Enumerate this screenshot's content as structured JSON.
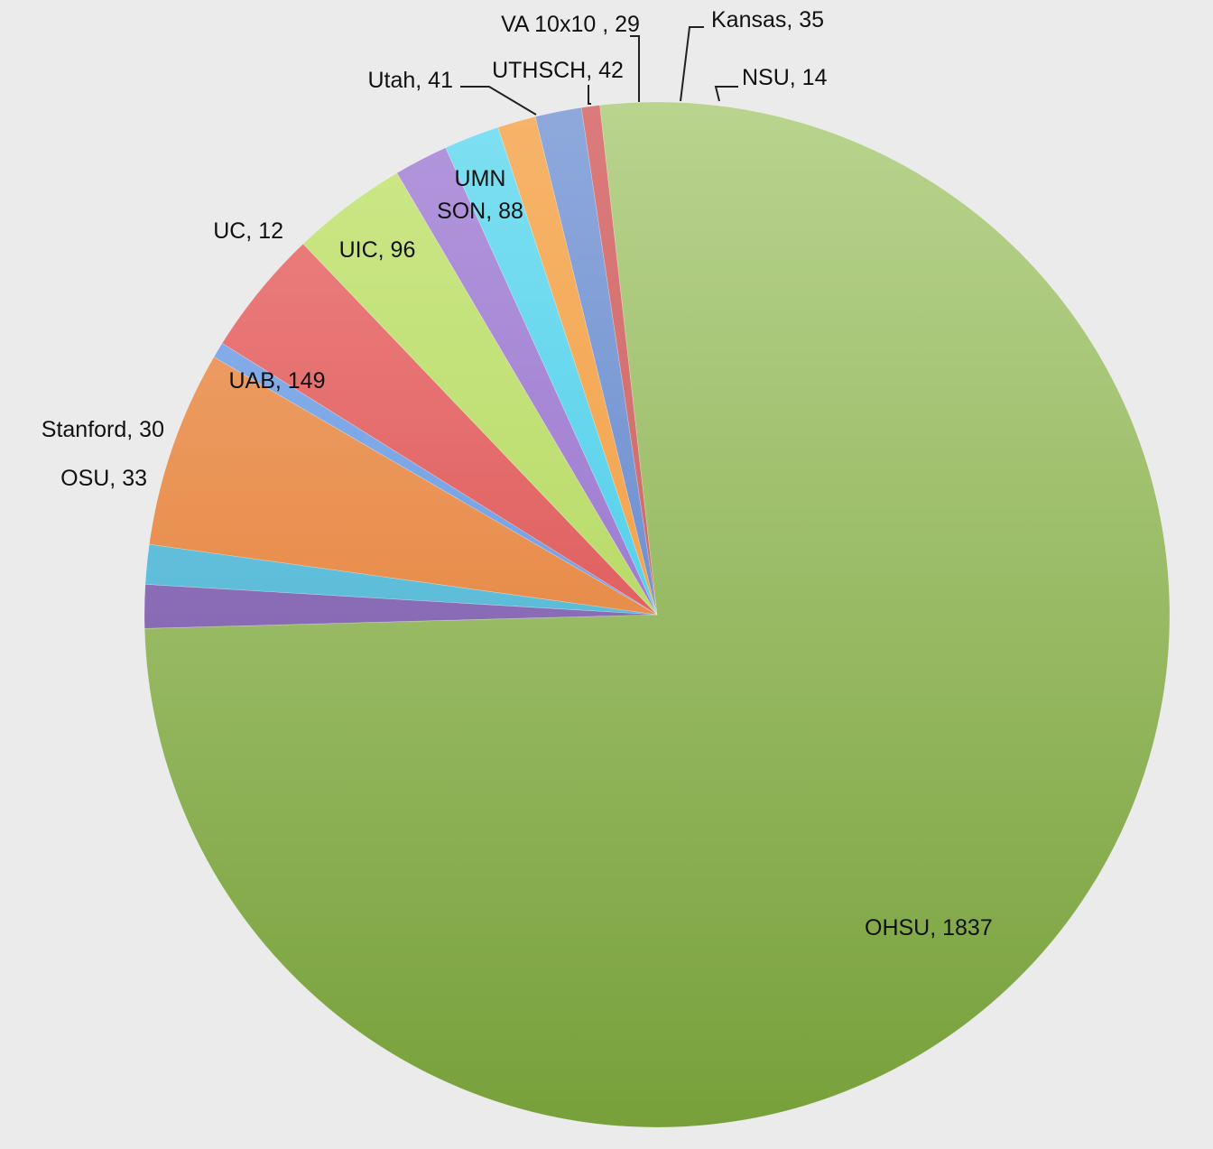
{
  "chart_data": {
    "type": "pie",
    "title": "",
    "slices": [
      {
        "label": "NSU, 14",
        "name": "NSU",
        "value": 14,
        "color": "#dc7b7b",
        "color_dark": "#c05a5a"
      },
      {
        "label": "OHSU, 1837",
        "name": "OHSU",
        "value": 1837,
        "color": "#b9d48e",
        "color_dark": "#77a03a"
      },
      {
        "label": "OSU, 33",
        "name": "OSU",
        "value": 33,
        "color": "#a88ccf",
        "color_dark": "#6a4a9c"
      },
      {
        "label": "Stanford, 30",
        "name": "Stanford",
        "value": 30,
        "color": "#7fd0e8",
        "color_dark": "#3aa8c8"
      },
      {
        "label": "UAB, 149",
        "name": "UAB",
        "value": 149,
        "color": "#f0a877",
        "color_dark": "#e0721f"
      },
      {
        "label": "UC, 12",
        "name": "UC",
        "value": 12,
        "color": "#8fb4ec",
        "color_dark": "#5b8fdc"
      },
      {
        "label": "UIC, 96",
        "name": "UIC",
        "value": 96,
        "color": "#ee8585",
        "color_dark": "#d23c3c"
      },
      {
        "label": "UMN SON, 88",
        "name": "UMN SON",
        "value": 88,
        "color": "#cde88a",
        "color_dark": "#a6cf4a"
      },
      {
        "label": "Utah, 41",
        "name": "Utah",
        "value": 41,
        "color": "#b397dc",
        "color_dark": "#8a62c6"
      },
      {
        "label": "UTHSCH, 42",
        "name": "UTHSCH",
        "value": 42,
        "color": "#7fe0f2",
        "color_dark": "#2ec1e2"
      },
      {
        "label": "VA 10x10 , 29",
        "name": "VA 10x10",
        "value": 29,
        "color": "#f6b46a",
        "color_dark": "#f09532"
      },
      {
        "label": "Kansas, 35",
        "name": "Kansas",
        "value": 35,
        "color": "#8fa9dc",
        "color_dark": "#4f78c4"
      }
    ]
  }
}
